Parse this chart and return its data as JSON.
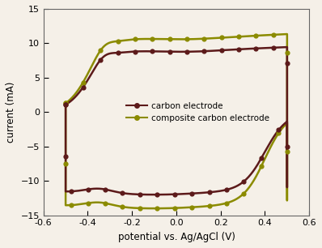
{
  "title": "",
  "xlabel": "potential vs. Ag/AgCl (V)",
  "ylabel": "current (mA)",
  "xlim": [
    -0.6,
    0.6
  ],
  "ylim": [
    -15,
    15
  ],
  "xticks": [
    -0.6,
    -0.4,
    -0.2,
    0.0,
    0.2,
    0.4,
    0.6
  ],
  "yticks": [
    -15,
    -10,
    -5,
    0,
    5,
    10,
    15
  ],
  "carbon_color": "#5c1a1a",
  "composite_color": "#8b8b00",
  "background_color": "#f5f0e8",
  "legend_labels": [
    "carbon electrode",
    "composite carbon electrode"
  ],
  "v_min": -0.5,
  "v_max": 0.5,
  "carbon_upper_plateau": 9.0,
  "carbon_upper_peak": 9.0,
  "carbon_lower_plateau": -11.5,
  "composite_upper_plateau": 10.8,
  "composite_upper_peak": 10.8,
  "composite_lower_plateau": -13.5,
  "n_markers": 30
}
